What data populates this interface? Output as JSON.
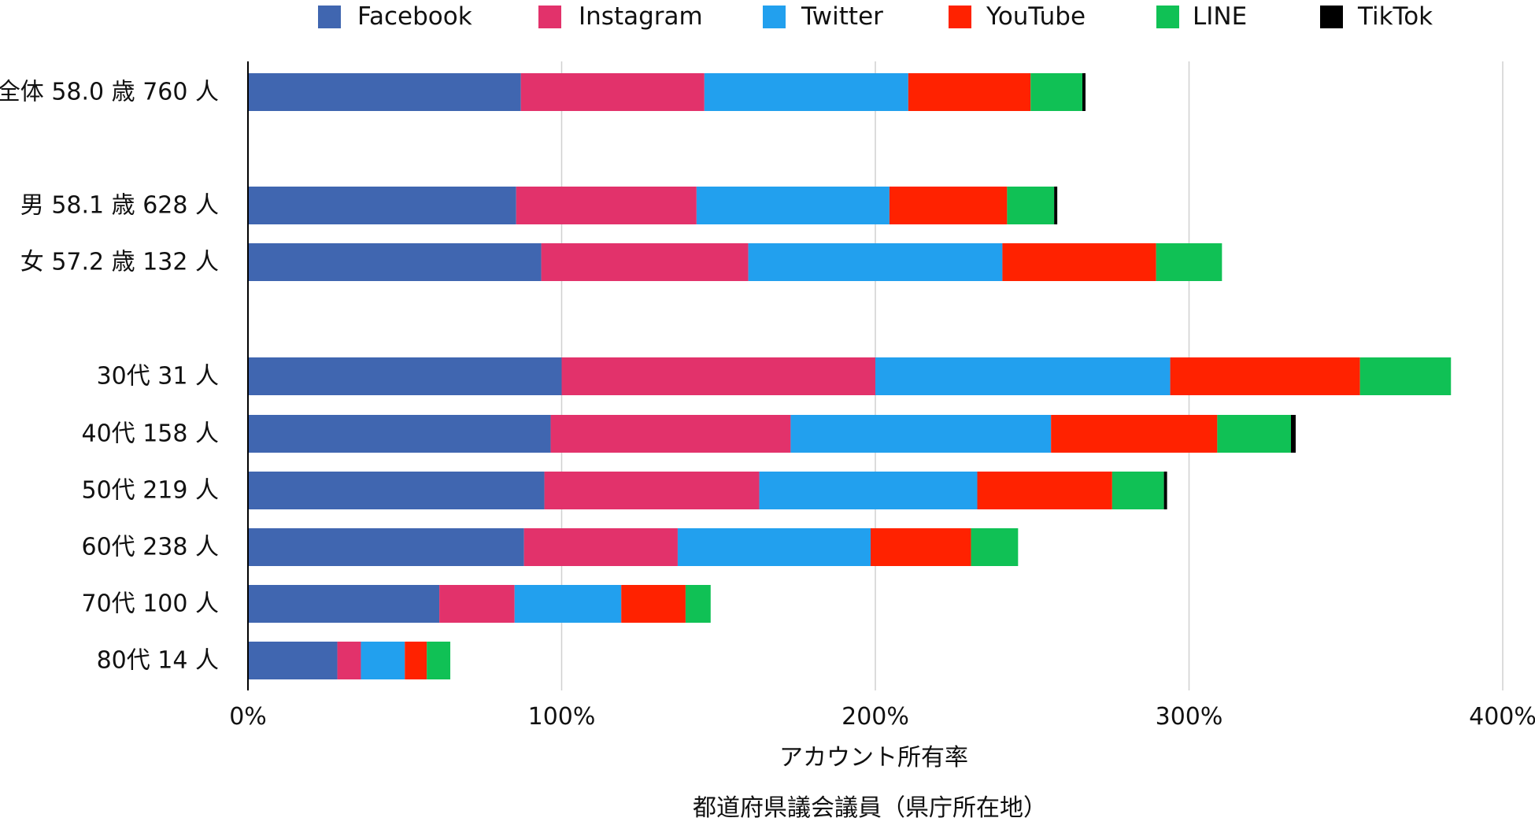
{
  "chart_data": {
    "type": "bar",
    "orientation": "horizontal",
    "stacked": true,
    "categories": [
      "全体 58.0 歳 760 人",
      "男 58.1 歳 628 人",
      "女 57.2 歳 132 人",
      "30代 31 人",
      "40代 158 人",
      "50代 219 人",
      "60代 238 人",
      "70代 100 人",
      "80代 14 人"
    ],
    "series": [
      {
        "name": "Facebook",
        "color": "#4066b0",
        "values": [
          87,
          85.5,
          93.5,
          100,
          96.5,
          94.5,
          88,
          61,
          28.5
        ]
      },
      {
        "name": "Instagram",
        "color": "#e2326b",
        "values": [
          58.5,
          57.5,
          66,
          100,
          76.5,
          68.5,
          49,
          24,
          7.5
        ]
      },
      {
        "name": "Twitter",
        "color": "#22a0ee",
        "values": [
          65,
          61.5,
          81,
          94,
          83,
          69.5,
          61.5,
          34,
          14
        ]
      },
      {
        "name": "YouTube",
        "color": "#ff2200",
        "values": [
          39,
          37.5,
          49,
          60.5,
          53,
          43,
          32,
          20.5,
          7
        ]
      },
      {
        "name": "LINE",
        "color": "#10c155",
        "values": [
          16.5,
          15,
          21,
          29,
          23.5,
          16.5,
          15,
          8,
          7.5
        ]
      },
      {
        "name": "TikTok",
        "color": "#000000",
        "values": [
          1,
          1,
          0,
          0,
          1.5,
          1,
          0,
          0,
          0
        ]
      }
    ],
    "xlabel": "アカウント所有率",
    "subtitle": "都道府県議会議員（県庁所在地）",
    "xlim": [
      0,
      400
    ],
    "xticks": [
      "0%",
      "100%",
      "200%",
      "300%",
      "400%"
    ],
    "xtick_values": [
      0,
      100,
      200,
      300,
      400
    ],
    "grid": true,
    "legend": "top"
  }
}
